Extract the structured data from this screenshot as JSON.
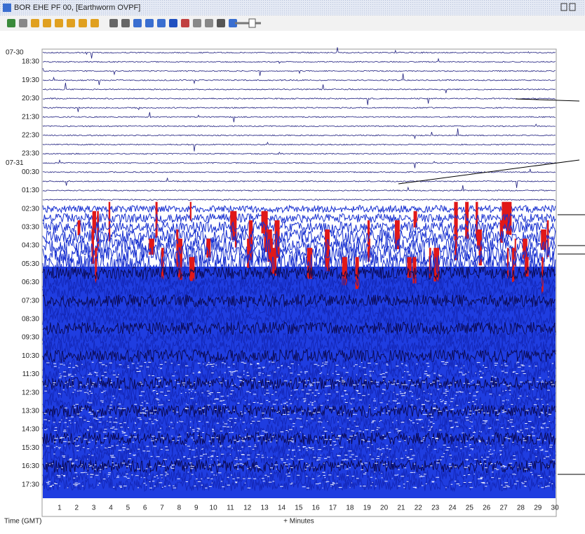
{
  "window": {
    "title": "BOR EHE PF 00, [Earthworm OVPF]"
  },
  "plot": {
    "dates": [
      "07-30",
      "07-31"
    ],
    "time_labels": [
      "18:30",
      "19:30",
      "20:30",
      "21:30",
      "22:30",
      "23:30",
      "00:30",
      "01:30",
      "02:30",
      "03:30",
      "04:30",
      "05:30",
      "06:30",
      "07:30",
      "08:30",
      "09:30",
      "10:30",
      "11:30",
      "12:30",
      "13:30",
      "14:30",
      "15:30",
      "16:30",
      "17:30"
    ],
    "x_ticks": [
      "1",
      "2",
      "3",
      "4",
      "5",
      "6",
      "7",
      "8",
      "9",
      "10",
      "11",
      "12",
      "13",
      "14",
      "15",
      "16",
      "17",
      "18",
      "19",
      "20",
      "21",
      "22",
      "23",
      "24",
      "25",
      "26",
      "27",
      "28",
      "29",
      "30"
    ],
    "x_label": "+ Minutes",
    "y_label": "Time (GMT)"
  }
}
